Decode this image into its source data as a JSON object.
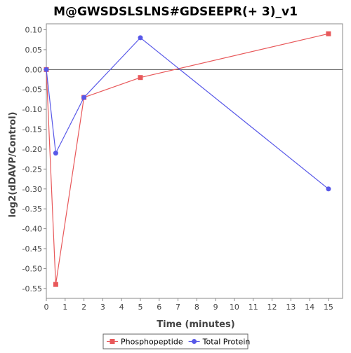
{
  "chart_data": {
    "type": "line",
    "title": "M@GWSDSLSLNS#GDSEEPR(+ 3)_v1",
    "xlabel": "Time (minutes)",
    "ylabel": "log2(dDAVP/Control)",
    "xlim": [
      0,
      15.75
    ],
    "ylim": [
      -0.575,
      0.115
    ],
    "x_ticks": [
      0,
      1,
      2,
      3,
      4,
      5,
      6,
      7,
      8,
      9,
      10,
      11,
      12,
      13,
      14,
      15
    ],
    "y_ticks": [
      0.1,
      0.05,
      0.0,
      -0.05,
      -0.1,
      -0.15,
      -0.2,
      -0.25,
      -0.3,
      -0.35,
      -0.4,
      -0.45,
      -0.5,
      -0.55
    ],
    "y_tick_labels": [
      "0.10",
      "0.05",
      "0.00",
      "-0.05",
      "-0.10",
      "-0.15",
      "-0.20",
      "-0.25",
      "-0.30",
      "-0.35",
      "-0.40",
      "-0.45",
      "-0.50",
      "-0.55"
    ],
    "zero_line": true,
    "grid": false,
    "legend_position": "bottom-center",
    "series": [
      {
        "name": "Phosphopeptide",
        "color": "#e8585a",
        "marker": "square",
        "x": [
          0,
          0.5,
          2,
          5,
          15
        ],
        "y": [
          0.0,
          -0.54,
          -0.07,
          -0.02,
          0.09
        ]
      },
      {
        "name": "Total Protein",
        "color": "#5858e8",
        "marker": "circle",
        "x": [
          0,
          0.5,
          2,
          5,
          15
        ],
        "y": [
          0.0,
          -0.21,
          -0.07,
          0.08,
          -0.3
        ]
      }
    ]
  }
}
